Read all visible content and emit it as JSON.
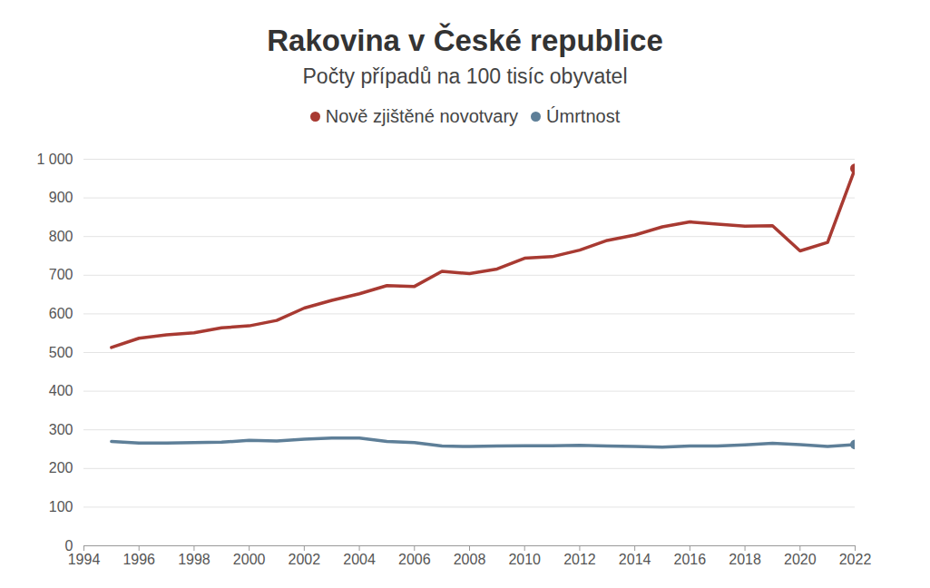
{
  "chart_data": {
    "type": "line",
    "title": "Rakovina v České republice",
    "subtitle": "Počty případů na 100 tisíc obyvatel",
    "x": [
      1995,
      1996,
      1997,
      1998,
      1999,
      2000,
      2001,
      2002,
      2003,
      2004,
      2005,
      2006,
      2007,
      2008,
      2009,
      2010,
      2011,
      2012,
      2013,
      2014,
      2015,
      2016,
      2017,
      2018,
      2019,
      2020,
      2021,
      2022
    ],
    "series": [
      {
        "name": "Nově zjištěné novotvary",
        "color": "#a83a32",
        "values": [
          513,
          537,
          546,
          551,
          564,
          569,
          583,
          615,
          635,
          652,
          673,
          671,
          710,
          704,
          716,
          744,
          748,
          765,
          790,
          804,
          825,
          838,
          832,
          827,
          828,
          763,
          785,
          976
        ]
      },
      {
        "name": "Úmrtnost",
        "color": "#5e7f98",
        "values": [
          270,
          266,
          266,
          267,
          268,
          273,
          271,
          276,
          279,
          279,
          270,
          267,
          258,
          257,
          258,
          259,
          259,
          260,
          258,
          257,
          255,
          258,
          258,
          261,
          265,
          262,
          257,
          262
        ]
      }
    ],
    "xlim": [
      1994,
      2022
    ],
    "xticks": [
      1994,
      1996,
      1998,
      2000,
      2002,
      2004,
      2006,
      2008,
      2010,
      2012,
      2014,
      2016,
      2018,
      2020,
      2022
    ],
    "ylim": [
      0,
      1000
    ],
    "yticks": [
      0,
      100,
      200,
      300,
      400,
      500,
      600,
      700,
      800,
      900,
      {
        "value": 1000,
        "label": "1 000"
      }
    ],
    "grid": true,
    "legend": "top",
    "marker": "last"
  }
}
